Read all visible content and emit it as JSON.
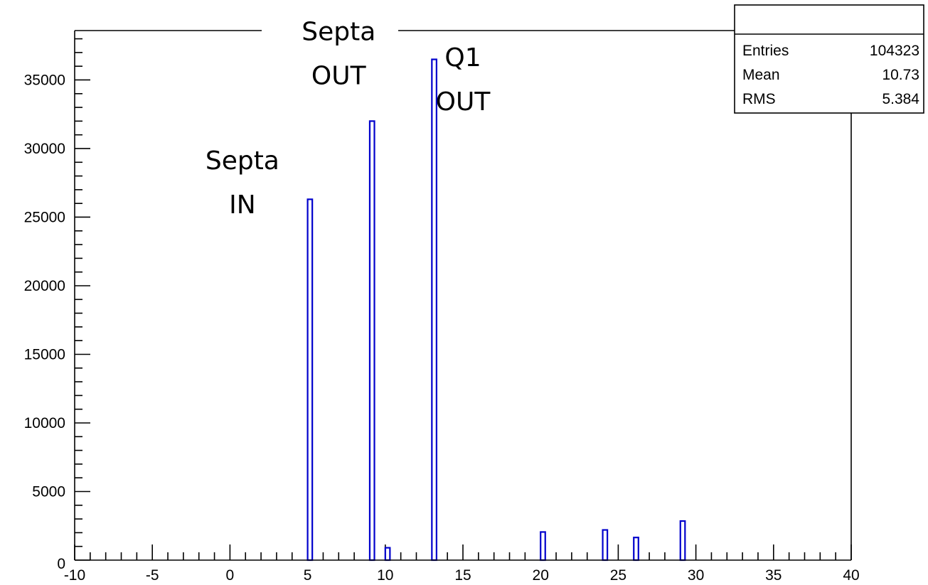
{
  "chart_data": {
    "type": "bar",
    "title": "",
    "xlabel": "",
    "ylabel": "",
    "xlim": [
      -10,
      40
    ],
    "ylim": [
      0,
      38600
    ],
    "x_ticks": [
      -10,
      -5,
      0,
      5,
      10,
      15,
      20,
      25,
      30,
      35,
      40
    ],
    "y_ticks": [
      5000,
      10000,
      15000,
      20000,
      25000,
      30000,
      35000
    ],
    "y_zero_label": "0",
    "bin_width": 0.3,
    "bars": [
      {
        "x": 5.0,
        "value": 26300
      },
      {
        "x": 9.0,
        "value": 32000
      },
      {
        "x": 10.0,
        "value": 900
      },
      {
        "x": 13.0,
        "value": 36500
      },
      {
        "x": 20.0,
        "value": 2050
      },
      {
        "x": 24.0,
        "value": 2200
      },
      {
        "x": 26.0,
        "value": 1650
      },
      {
        "x": 29.0,
        "value": 2850
      }
    ],
    "bar_color": "#0000cc",
    "annotations": [
      {
        "lines": [
          "Septa",
          "IN"
        ],
        "x": 0.8,
        "y": 28500
      },
      {
        "lines": [
          "Septa",
          "OUT"
        ],
        "x": 7.0,
        "y": 37900
      },
      {
        "lines": [
          "Q1",
          "OUT"
        ],
        "x": 15.0,
        "y": 36000
      }
    ],
    "stats_box": {
      "rows": [
        {
          "label": "Entries",
          "value": "104323"
        },
        {
          "label": "Mean",
          "value": "10.73"
        },
        {
          "label": "RMS",
          "value": "5.384"
        }
      ]
    }
  }
}
